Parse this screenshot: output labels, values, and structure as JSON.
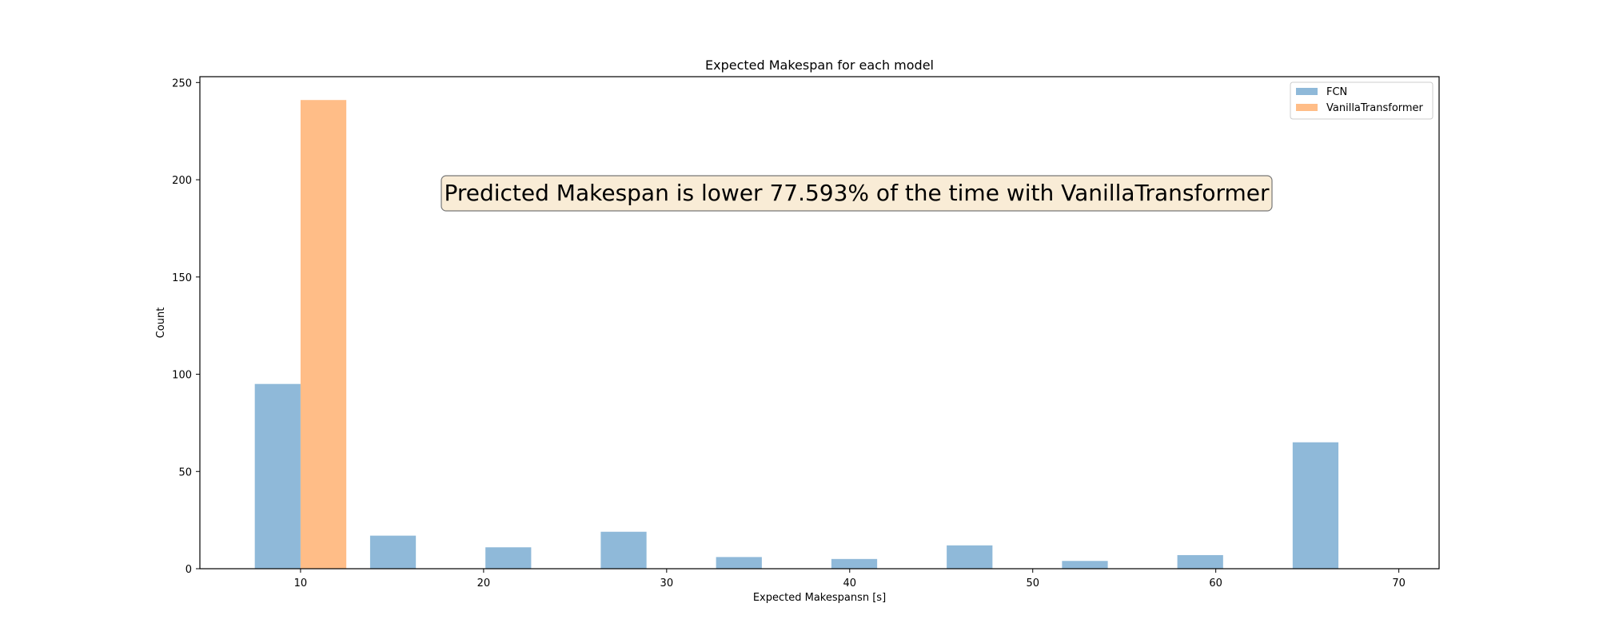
{
  "chart_data": {
    "type": "bar",
    "title": "Expected Makespan for each model",
    "xlabel": "Expected Makespansn [s]",
    "ylabel": "Count",
    "xlim": [
      4.5,
      72.2
    ],
    "ylim": [
      0,
      253
    ],
    "xticks": [
      10,
      20,
      30,
      40,
      50,
      60,
      70
    ],
    "yticks": [
      0,
      50,
      100,
      150,
      200,
      250
    ],
    "grid": false,
    "legend_position": "top-right",
    "colors": {
      "FCN": "#8fb9d9",
      "VanillaTransformer": "#ffbd87"
    },
    "bin_width": 2.5,
    "series": [
      {
        "name": "FCN",
        "x": [
          7.5,
          13.8,
          20.1,
          26.4,
          32.7,
          39.0,
          45.3,
          51.6,
          57.9,
          64.2
        ],
        "values": [
          95,
          17,
          11,
          19,
          6,
          5,
          12,
          4,
          7,
          65
        ]
      },
      {
        "name": "VanillaTransformer",
        "x": [
          10.0
        ],
        "values": [
          241
        ]
      }
    ],
    "annotation": "Predicted Makespan is lower 77.593% of the time with VanillaTransformer"
  }
}
